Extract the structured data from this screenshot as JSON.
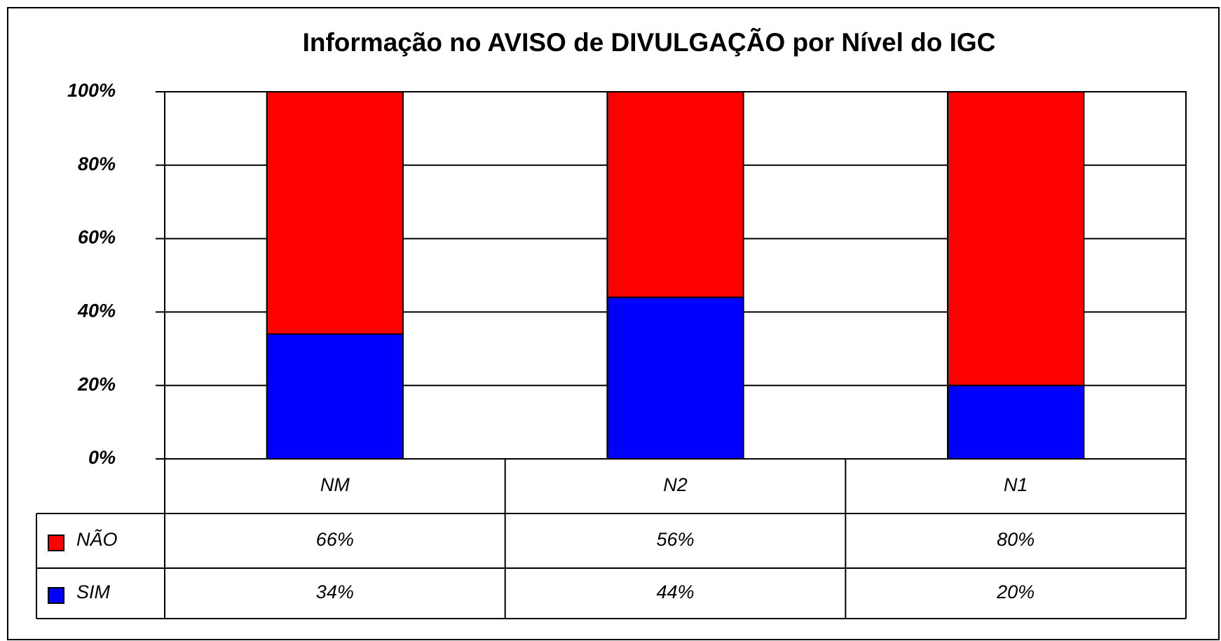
{
  "chart_data": {
    "type": "stacked_bar",
    "title": "Informação no AVISO de DIVULGAÇÃO por Nível do IGC",
    "categories": [
      "NM",
      "N2",
      "N1"
    ],
    "series": [
      {
        "name": "NÃO",
        "color": "#ff0000",
        "values": [
          66,
          56,
          80
        ],
        "value_labels": [
          "66%",
          "56%",
          "80%"
        ]
      },
      {
        "name": "SIM",
        "color": "#0000ff",
        "values": [
          34,
          44,
          20
        ],
        "value_labels": [
          "34%",
          "44%",
          "20%"
        ]
      }
    ],
    "ylim": [
      0,
      100
    ],
    "yticks": [
      {
        "value": 0,
        "label": "0%"
      },
      {
        "value": 20,
        "label": "20%"
      },
      {
        "value": 40,
        "label": "40%"
      },
      {
        "value": 60,
        "label": "60%"
      },
      {
        "value": 80,
        "label": "80%"
      },
      {
        "value": 100,
        "label": "100%"
      }
    ],
    "grid": true
  }
}
